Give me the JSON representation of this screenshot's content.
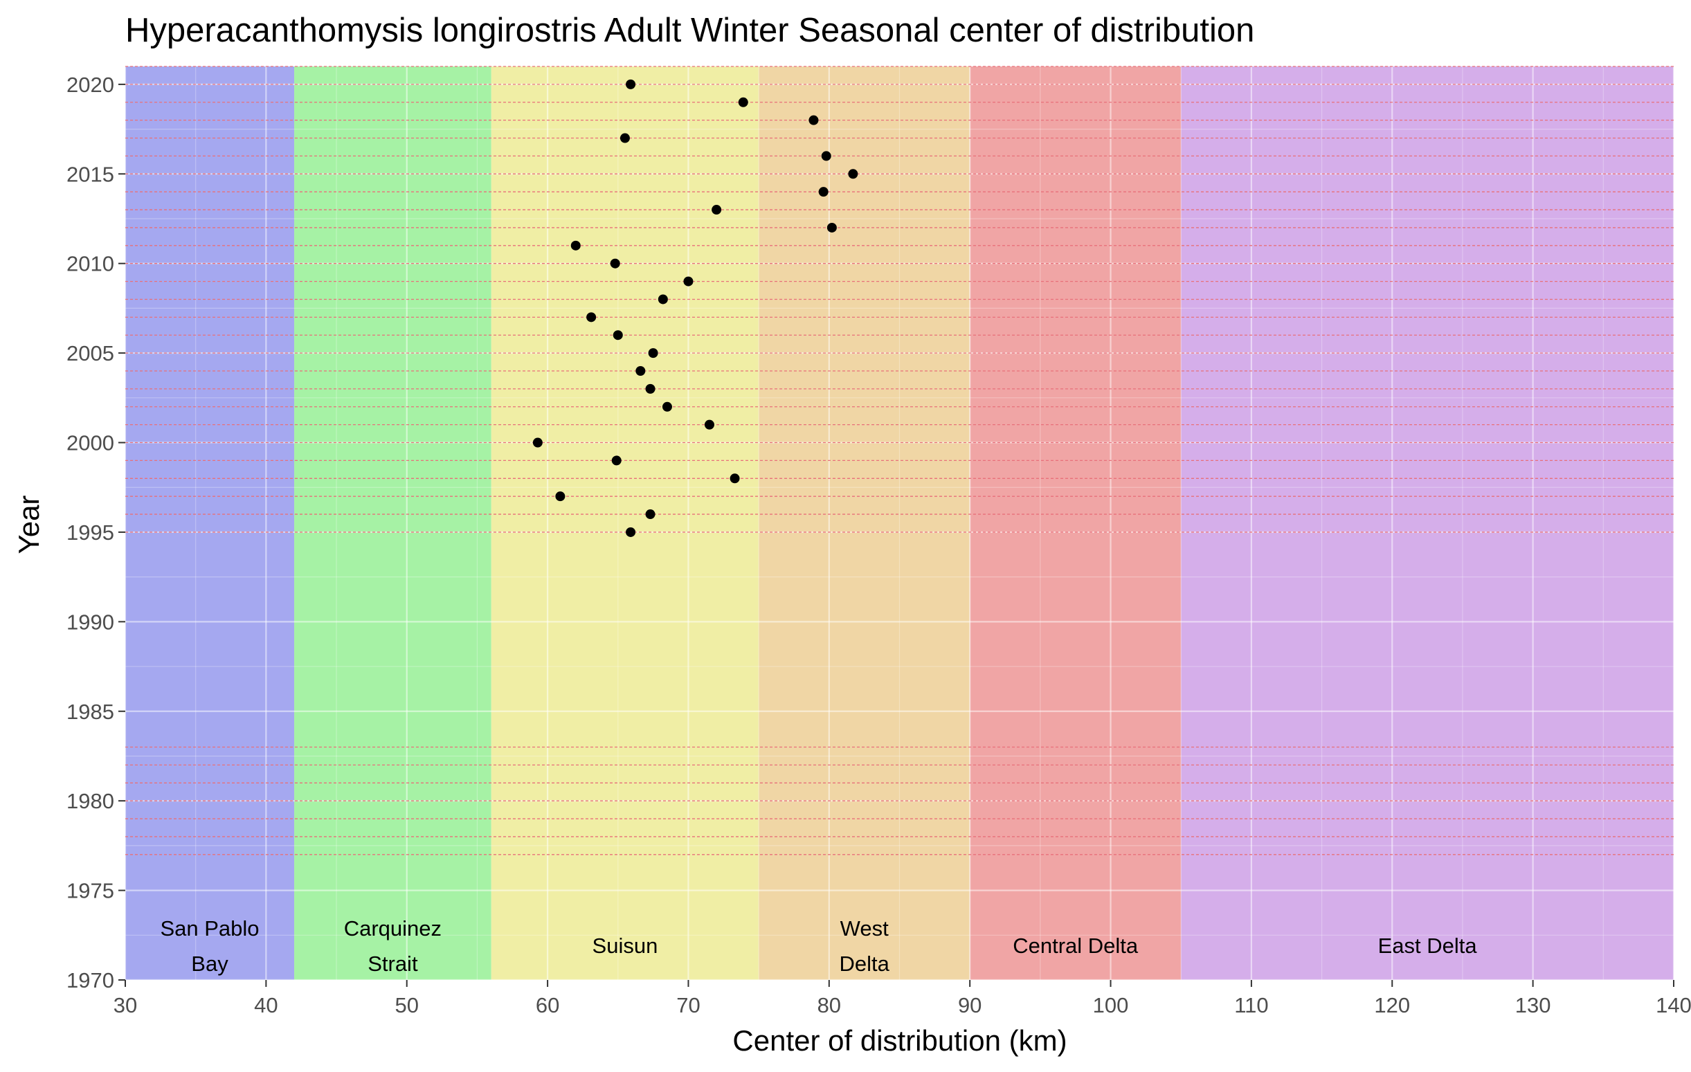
{
  "chart_data": {
    "type": "scatter",
    "title": "Hyperacanthomysis longirostris Adult Winter Seasonal center of distribution",
    "xlabel": "Center of distribution (km)",
    "ylabel": "Year",
    "xlim": [
      30,
      140
    ],
    "ylim": [
      1970,
      2021
    ],
    "x_ticks": [
      "30",
      "40",
      "50",
      "60",
      "70",
      "80",
      "90",
      "100",
      "110",
      "120",
      "130",
      "140"
    ],
    "y_ticks": [
      "1970",
      "1975",
      "1980",
      "1985",
      "1990",
      "1995",
      "2000",
      "2005",
      "2010",
      "2015",
      "2020"
    ],
    "grid": true,
    "regions": [
      {
        "name": "San Pablo Bay",
        "lines": [
          "San Pablo",
          "Bay"
        ],
        "from": 30,
        "to": 42,
        "color": "#a5a8f0"
      },
      {
        "name": "Carquinez Strait",
        "lines": [
          "Carquinez",
          "Strait"
        ],
        "from": 42,
        "to": 56,
        "color": "#a6f2a5"
      },
      {
        "name": "Suisun",
        "lines": [
          "Suisun"
        ],
        "from": 56,
        "to": 75,
        "color": "#f0eea5"
      },
      {
        "name": "West Delta",
        "lines": [
          "West",
          "Delta"
        ],
        "from": 75,
        "to": 90,
        "color": "#f0d6a5"
      },
      {
        "name": "Central Delta",
        "lines": [
          "Central Delta"
        ],
        "from": 90,
        "to": 105,
        "color": "#f0a5a5"
      },
      {
        "name": "East Delta",
        "lines": [
          "East Delta"
        ],
        "from": 105,
        "to": 140,
        "color": "#d5aeea"
      }
    ],
    "sampled_years": [
      1977,
      1978,
      1979,
      1980,
      1981,
      1982,
      1983,
      1995,
      1996,
      1997,
      1998,
      1999,
      2000,
      2001,
      2002,
      2003,
      2004,
      2005,
      2006,
      2007,
      2008,
      2009,
      2010,
      2011,
      2012,
      2013,
      2014,
      2015,
      2016,
      2017,
      2018,
      2019,
      2020,
      2021
    ],
    "sampled_line_color": "#e8707a",
    "point_color": "#000000",
    "points": [
      {
        "x": 65.9,
        "y": 1995
      },
      {
        "x": 67.3,
        "y": 1996
      },
      {
        "x": 60.9,
        "y": 1997
      },
      {
        "x": 73.3,
        "y": 1998
      },
      {
        "x": 64.9,
        "y": 1999
      },
      {
        "x": 59.3,
        "y": 2000
      },
      {
        "x": 71.5,
        "y": 2001
      },
      {
        "x": 68.5,
        "y": 2002
      },
      {
        "x": 67.3,
        "y": 2003
      },
      {
        "x": 66.6,
        "y": 2004
      },
      {
        "x": 67.5,
        "y": 2005
      },
      {
        "x": 65.0,
        "y": 2006
      },
      {
        "x": 63.1,
        "y": 2007
      },
      {
        "x": 68.2,
        "y": 2008
      },
      {
        "x": 70.0,
        "y": 2009
      },
      {
        "x": 64.8,
        "y": 2010
      },
      {
        "x": 62.0,
        "y": 2011
      },
      {
        "x": 80.2,
        "y": 2012
      },
      {
        "x": 72.0,
        "y": 2013
      },
      {
        "x": 79.6,
        "y": 2014
      },
      {
        "x": 81.7,
        "y": 2015
      },
      {
        "x": 79.8,
        "y": 2016
      },
      {
        "x": 65.5,
        "y": 2017
      },
      {
        "x": 78.9,
        "y": 2018
      },
      {
        "x": 73.9,
        "y": 2019
      },
      {
        "x": 65.9,
        "y": 2020
      }
    ]
  }
}
